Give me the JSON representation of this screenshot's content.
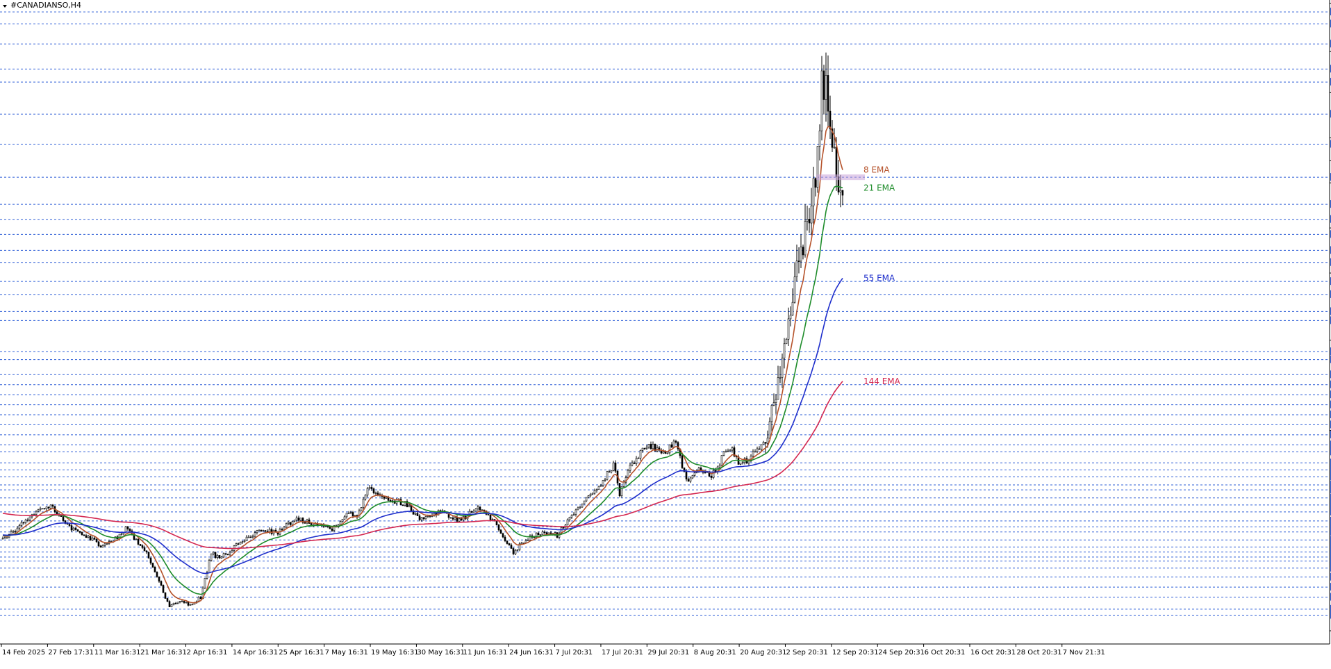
{
  "window": {
    "title": "#CANADIANSO,H4"
  },
  "chart_data": {
    "type": "candlestick",
    "symbol": "#CANADIANSO",
    "timeframe": "H4",
    "ylim": [
      5.72,
      37.02
    ],
    "price_axis_ticks": [
      "37.02",
      "34.62",
      "32.57",
      "30.32",
      "29.17",
      "28.07",
      "25.82",
      "23.57",
      "20.22",
      "15.72",
      "5.72"
    ],
    "horizontal_levels": [
      "36.60",
      "36.00",
      "35.00",
      "33.75",
      "33.10",
      "31.50",
      "30.00",
      "28.35",
      "27.00",
      "26.25",
      "25.50",
      "24.70",
      "24.10",
      "23.15",
      "22.50",
      "21.65",
      "21.20",
      "19.65",
      "19.25",
      "18.50",
      "18.00",
      "17.50",
      "17.00",
      "16.50",
      "16.00",
      "15.50",
      "15.00",
      "14.65",
      "14.10",
      "13.75",
      "13.40",
      "13.00",
      "12.75",
      "12.35",
      "12.00",
      "11.65",
      "11.20",
      "10.90",
      "10.65",
      "10.25",
      "9.90",
      "9.65",
      "9.40",
      "9.20",
      "8.85",
      "8.40",
      "7.90",
      "7.40",
      "6.80",
      "6.50"
    ],
    "level_color": "#2b5cd6",
    "current_price_level": "28.35",
    "x_ticks": [
      "14 Feb 2025",
      "27 Feb 17:31",
      "11 Mar 16:31",
      "21 Mar 16:31",
      "2 Apr 16:31",
      "14 Apr 16:31",
      "25 Apr 16:31",
      "7 May 16:31",
      "19 May 16:31",
      "30 May 16:31",
      "11 Jun 16:31",
      "24 Jun 16:31",
      "7 Jul 20:31",
      "17 Jul 20:31",
      "29 Jul 20:31",
      "8 Aug 20:31",
      "20 Aug 20:31",
      "2 Sep 20:31",
      "12 Sep 20:31",
      "24 Sep 20:31",
      "6 Oct 20:31",
      "16 Oct 20:31",
      "28 Oct 20:31",
      "7 Nov 21:31"
    ],
    "price_path": [
      [
        0,
        10.3
      ],
      [
        8,
        10.9
      ],
      [
        15,
        11.6
      ],
      [
        24,
        11.9
      ],
      [
        30,
        11.0
      ],
      [
        38,
        10.6
      ],
      [
        48,
        9.9
      ],
      [
        55,
        10.4
      ],
      [
        60,
        10.9
      ],
      [
        64,
        10.2
      ],
      [
        70,
        9.4
      ],
      [
        75,
        8.2
      ],
      [
        80,
        6.9
      ],
      [
        84,
        7.2
      ],
      [
        90,
        7.0
      ],
      [
        95,
        7.4
      ],
      [
        100,
        9.6
      ],
      [
        104,
        9.3
      ],
      [
        110,
        9.8
      ],
      [
        118,
        10.4
      ],
      [
        125,
        10.8
      ],
      [
        132,
        10.6
      ],
      [
        140,
        11.3
      ],
      [
        150,
        11.1
      ],
      [
        158,
        10.8
      ],
      [
        165,
        11.6
      ],
      [
        170,
        11.4
      ],
      [
        175,
        12.9
      ],
      [
        180,
        12.6
      ],
      [
        187,
        12.2
      ],
      [
        193,
        12.1
      ],
      [
        200,
        11.3
      ],
      [
        205,
        11.5
      ],
      [
        210,
        11.7
      ],
      [
        215,
        11.4
      ],
      [
        220,
        11.2
      ],
      [
        227,
        11.9
      ],
      [
        235,
        11.3
      ],
      [
        240,
        10.3
      ],
      [
        245,
        9.6
      ],
      [
        250,
        10.2
      ],
      [
        258,
        10.6
      ],
      [
        266,
        10.5
      ],
      [
        272,
        11.3
      ],
      [
        280,
        12.4
      ],
      [
        288,
        13.2
      ],
      [
        293,
        14.0
      ],
      [
        296,
        12.6
      ],
      [
        300,
        13.7
      ],
      [
        304,
        14.4
      ],
      [
        310,
        15.0
      ],
      [
        318,
        14.6
      ],
      [
        323,
        15.2
      ],
      [
        328,
        13.2
      ],
      [
        335,
        13.8
      ],
      [
        340,
        13.5
      ],
      [
        343,
        13.9
      ],
      [
        346,
        14.5
      ],
      [
        350,
        14.7
      ],
      [
        354,
        14.0
      ],
      [
        360,
        14.5
      ],
      [
        366,
        15.2
      ],
      [
        370,
        17.0
      ],
      [
        375,
        19.5
      ],
      [
        380,
        23.2
      ],
      [
        385,
        25.8
      ],
      [
        390,
        28.1
      ],
      [
        393,
        32.8
      ],
      [
        395,
        33.4
      ],
      [
        398,
        30.3
      ],
      [
        401,
        28.4
      ],
      [
        403,
        28.3
      ]
    ],
    "series": [
      {
        "name": "8 EMA",
        "color": "#b5522a",
        "span": 8
      },
      {
        "name": "21 EMA",
        "color": "#1e8c2a",
        "span": 21
      },
      {
        "name": "55 EMA",
        "color": "#1f2fcc",
        "span": 55
      },
      {
        "name": "144 EMA",
        "color": "#d42851",
        "span": 144
      }
    ],
    "grid": false,
    "background": "#ffffff"
  }
}
